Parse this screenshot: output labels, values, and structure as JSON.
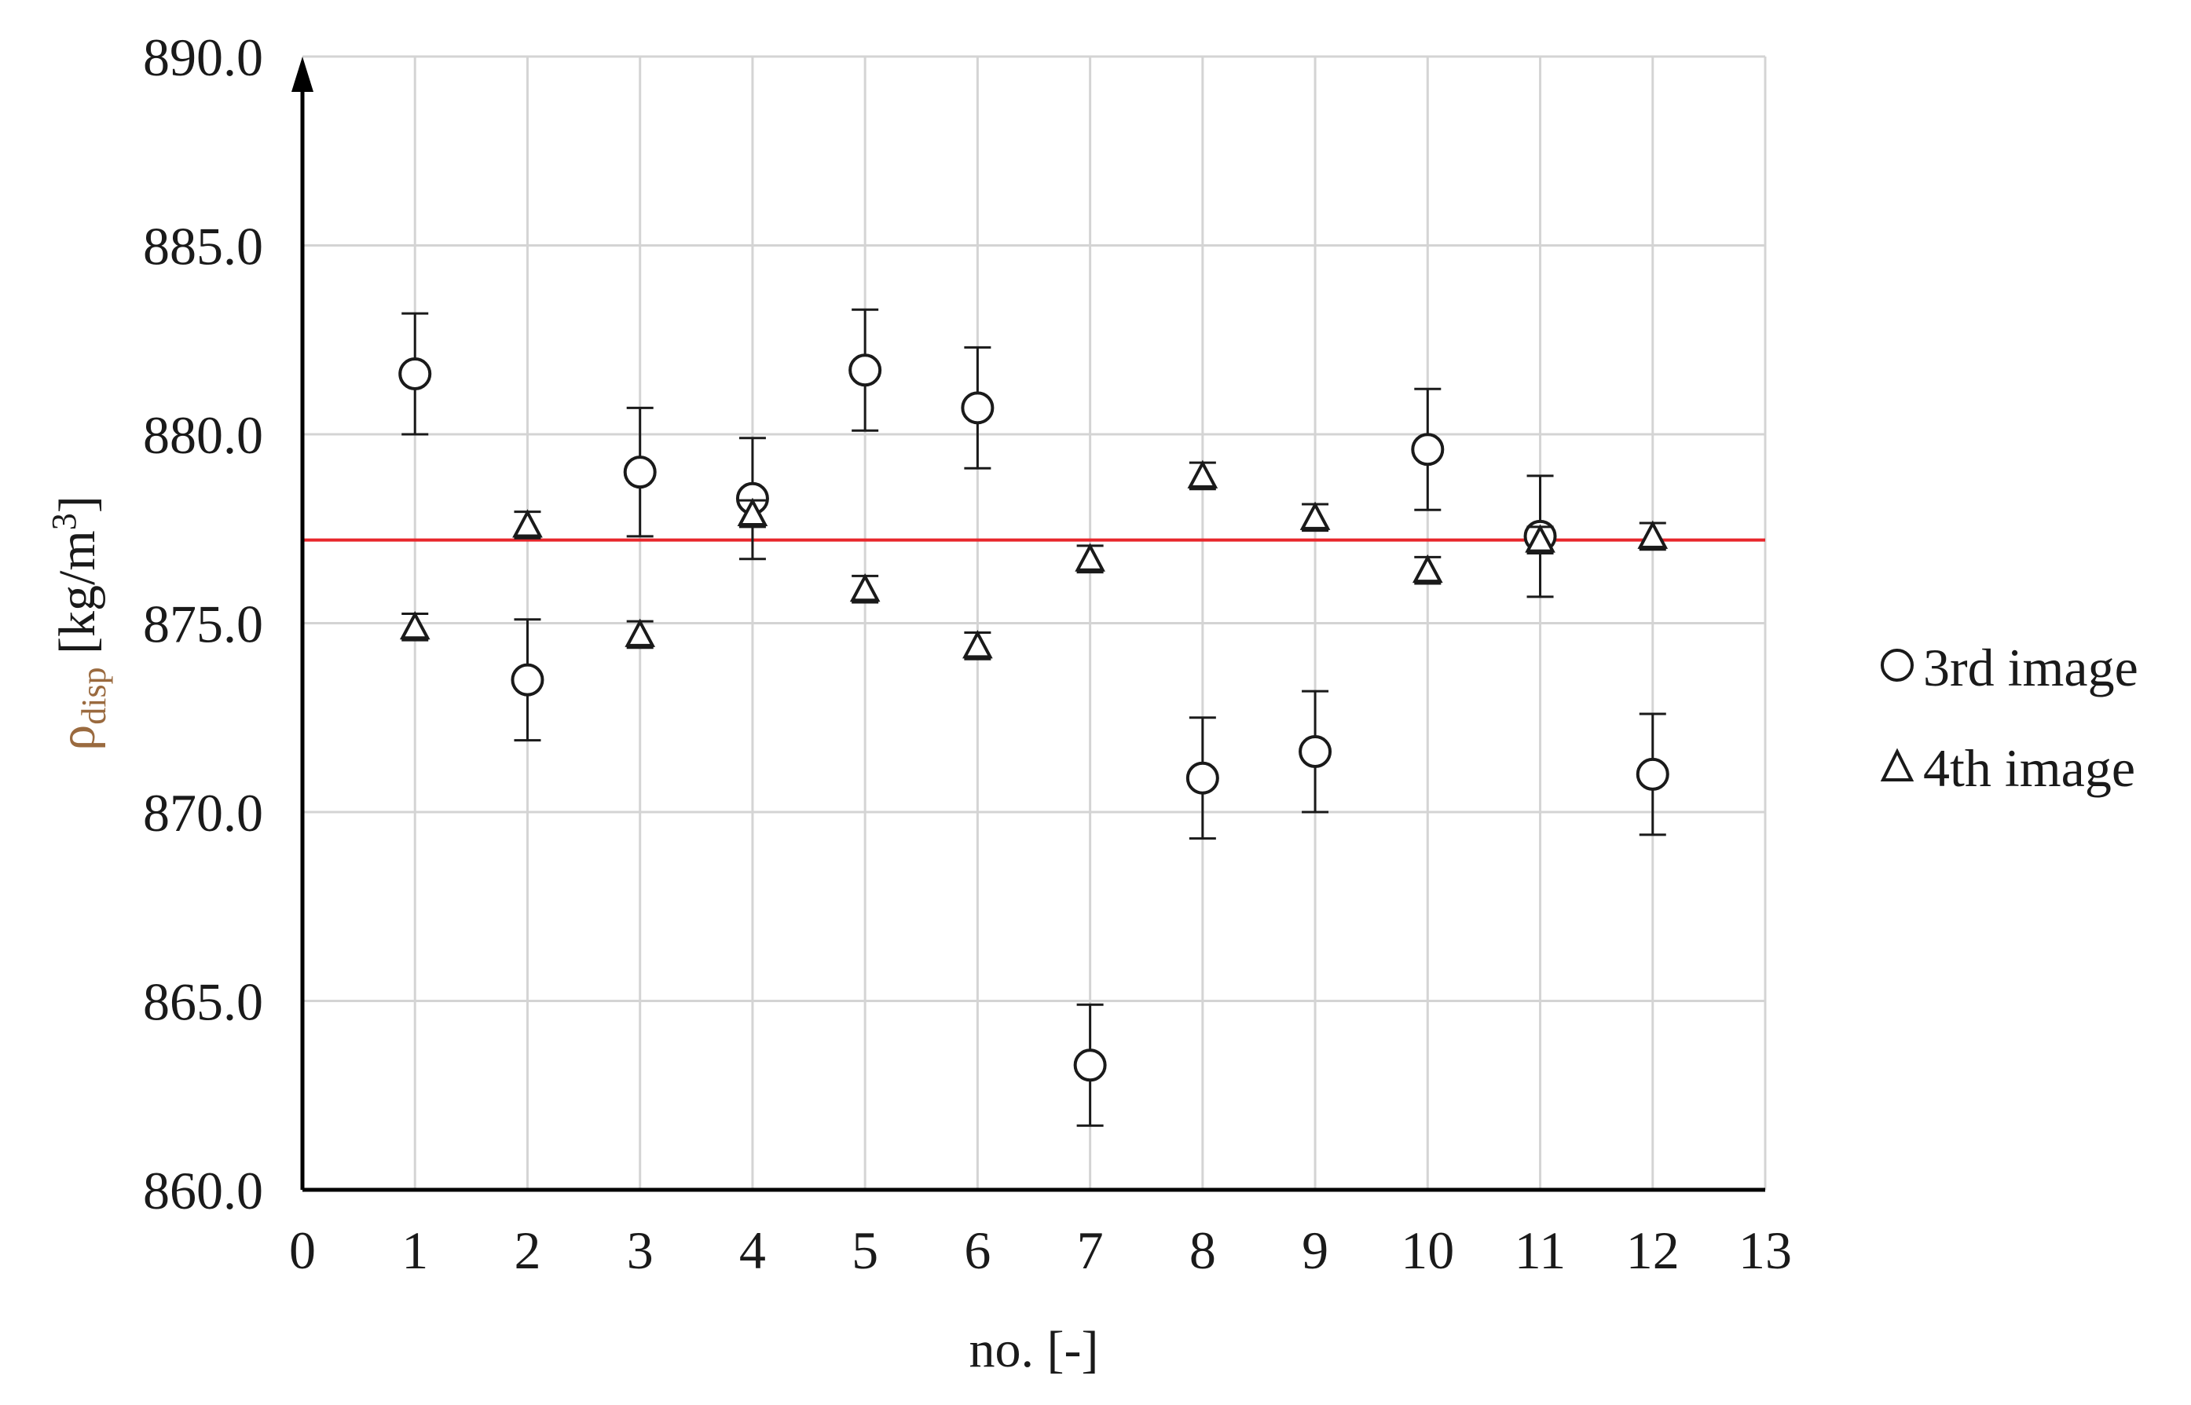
{
  "chart_data": {
    "type": "scatter",
    "title": "",
    "xlabel": "no. [-]",
    "ylabel": {
      "symbol": "ρ",
      "subscript": "disp",
      "unit": " [kg/m",
      "unit_sup": "3",
      "unit_close": "]"
    },
    "xlim": [
      0,
      13
    ],
    "ylim": [
      860,
      890
    ],
    "x_ticks": [
      "0",
      "1",
      "2",
      "3",
      "4",
      "5",
      "6",
      "7",
      "8",
      "9",
      "10",
      "11",
      "12",
      "13"
    ],
    "y_ticks": [
      "860.0",
      "865.0",
      "870.0",
      "875.0",
      "880.0",
      "885.0",
      "890.0"
    ],
    "grid": true,
    "legend_position": "right",
    "reference_line": {
      "y": 877.2,
      "color": "#e8262b"
    },
    "series": [
      {
        "name": "3rd image",
        "marker": "circle",
        "color": "#1a1a1a",
        "points": [
          {
            "x": 1,
            "y": 881.6,
            "err": 1.6
          },
          {
            "x": 2,
            "y": 873.5,
            "err": 1.6
          },
          {
            "x": 3,
            "y": 879.0,
            "err": 1.7
          },
          {
            "x": 4,
            "y": 878.3,
            "err": 1.6
          },
          {
            "x": 5,
            "y": 881.7,
            "err": 1.6
          },
          {
            "x": 6,
            "y": 880.7,
            "err": 1.6
          },
          {
            "x": 7,
            "y": 863.3,
            "err": 1.6
          },
          {
            "x": 8,
            "y": 870.9,
            "err": 1.6
          },
          {
            "x": 9,
            "y": 871.6,
            "err": 1.6
          },
          {
            "x": 10,
            "y": 879.6,
            "err": 1.6
          },
          {
            "x": 11,
            "y": 877.3,
            "err": 1.6
          },
          {
            "x": 12,
            "y": 871.0,
            "err": 1.6
          }
        ]
      },
      {
        "name": "4th image",
        "marker": "triangle",
        "color": "#1a1a1a",
        "points": [
          {
            "x": 1,
            "y": 874.9,
            "err": 0.35
          },
          {
            "x": 2,
            "y": 877.6,
            "err": 0.35
          },
          {
            "x": 3,
            "y": 874.7,
            "err": 0.35
          },
          {
            "x": 4,
            "y": 877.9,
            "err": 0.35
          },
          {
            "x": 5,
            "y": 875.9,
            "err": 0.35
          },
          {
            "x": 6,
            "y": 874.4,
            "err": 0.35
          },
          {
            "x": 7,
            "y": 876.7,
            "err": 0.35
          },
          {
            "x": 8,
            "y": 878.9,
            "err": 0.35
          },
          {
            "x": 9,
            "y": 877.8,
            "err": 0.35
          },
          {
            "x": 10,
            "y": 876.4,
            "err": 0.35
          },
          {
            "x": 11,
            "y": 877.2,
            "err": 0.35
          },
          {
            "x": 12,
            "y": 877.3,
            "err": 0.35
          }
        ]
      }
    ]
  }
}
